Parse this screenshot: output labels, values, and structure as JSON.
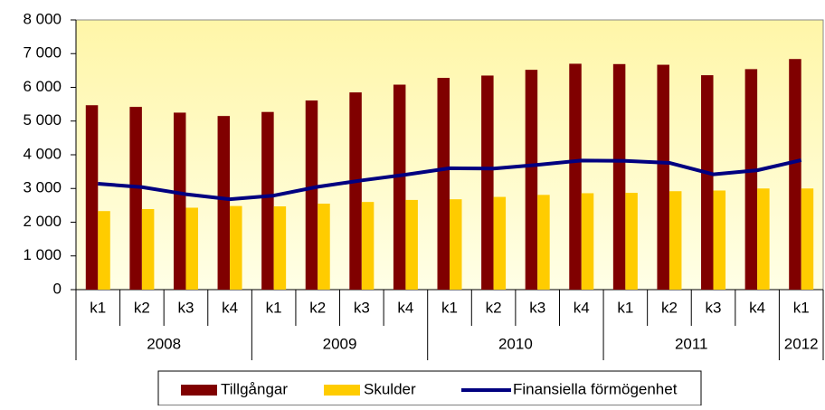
{
  "chart_data": {
    "type": "bar",
    "groups": [
      {
        "name": "2008",
        "categories": [
          "k1",
          "k2",
          "k3",
          "k4"
        ]
      },
      {
        "name": "2009",
        "categories": [
          "k1",
          "k2",
          "k3",
          "k4"
        ]
      },
      {
        "name": "2010",
        "categories": [
          "k1",
          "k2",
          "k3",
          "k4"
        ]
      },
      {
        "name": "2011",
        "categories": [
          "k1",
          "k2",
          "k3",
          "k4"
        ]
      },
      {
        "name": "2012",
        "categories": [
          "k1"
        ]
      }
    ],
    "series": [
      {
        "name": "Tillgångar",
        "type": "bar",
        "color": "#800000",
        "values": [
          5470,
          5420,
          5250,
          5150,
          5270,
          5610,
          5850,
          6080,
          6280,
          6350,
          6520,
          6700,
          6690,
          6670,
          6360,
          6540,
          6840
        ]
      },
      {
        "name": "Skulder",
        "type": "bar",
        "color": "#ffcc00",
        "values": [
          2330,
          2390,
          2430,
          2480,
          2470,
          2550,
          2600,
          2660,
          2680,
          2750,
          2810,
          2860,
          2870,
          2920,
          2940,
          3000,
          3000
        ]
      },
      {
        "name": "Finansiella förmögenhet",
        "type": "line",
        "color": "#000080",
        "values": [
          3140,
          3040,
          2830,
          2680,
          2790,
          3050,
          3240,
          3410,
          3600,
          3590,
          3700,
          3830,
          3820,
          3760,
          3420,
          3540,
          3840
        ]
      }
    ],
    "ylim": [
      0,
      8000
    ],
    "yticks": [
      0,
      {
        "value": 1000,
        "label": "1 000"
      },
      {
        "value": 2000,
        "label": "2 000"
      },
      {
        "value": 3000,
        "label": "3 000"
      },
      {
        "value": 4000,
        "label": "4 000"
      },
      {
        "value": 5000,
        "label": "5 000"
      },
      {
        "value": 6000,
        "label": "6 000"
      },
      {
        "value": 7000,
        "label": "7 000"
      },
      {
        "value": 8000,
        "label": "8 000"
      }
    ],
    "legend": "bottom"
  }
}
